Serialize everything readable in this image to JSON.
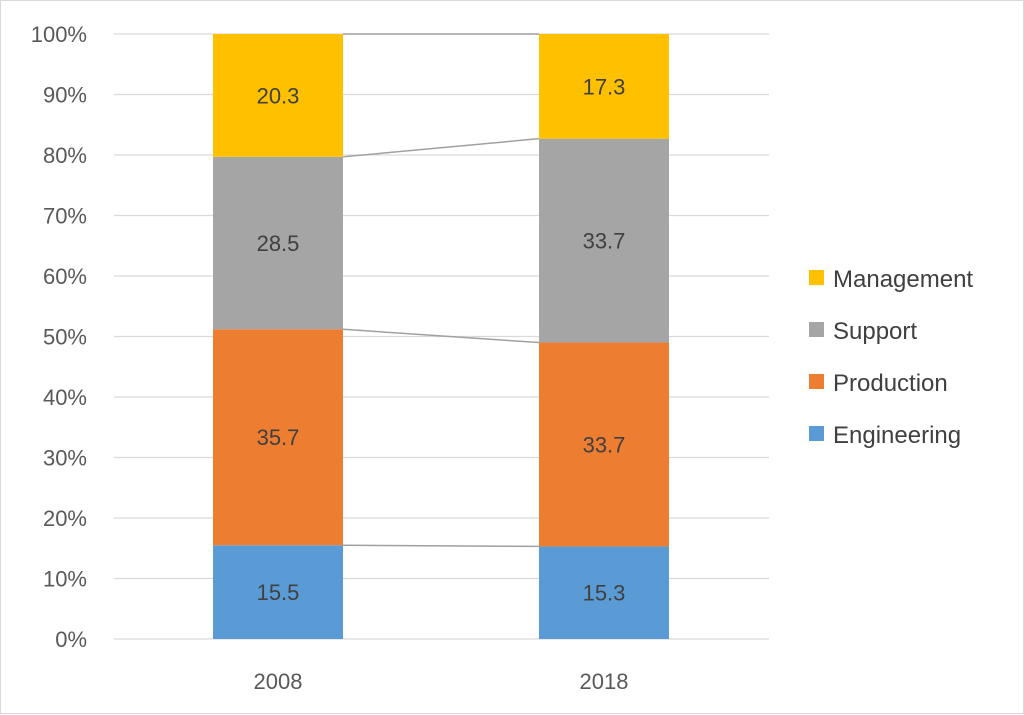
{
  "chart_data": {
    "type": "bar",
    "stacked": "percent",
    "categories": [
      "2008",
      "2018"
    ],
    "series": [
      {
        "name": "Engineering",
        "values": [
          15.5,
          15.3
        ],
        "color": "#5b9bd5"
      },
      {
        "name": "Production",
        "values": [
          35.7,
          33.7
        ],
        "color": "#ed7d31"
      },
      {
        "name": "Support",
        "values": [
          28.5,
          33.7
        ],
        "color": "#a5a5a5"
      },
      {
        "name": "Management",
        "values": [
          20.3,
          17.3
        ],
        "color": "#ffc000"
      }
    ],
    "y_ticks": [
      "0%",
      "10%",
      "20%",
      "30%",
      "40%",
      "50%",
      "60%",
      "70%",
      "80%",
      "90%",
      "100%"
    ],
    "ylim": [
      0,
      100
    ],
    "grid": true,
    "series_lines": true,
    "legend": {
      "position": "right",
      "order": [
        "Management",
        "Support",
        "Production",
        "Engineering"
      ]
    }
  }
}
